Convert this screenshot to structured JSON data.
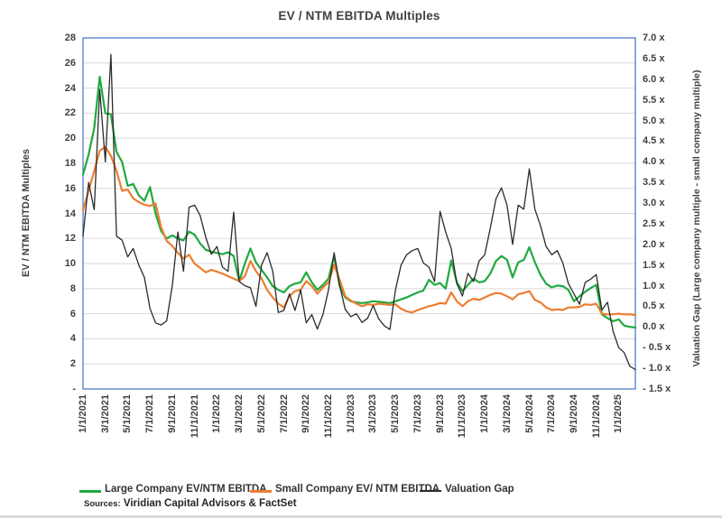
{
  "title": "EV / NTM EBITDA Multiples",
  "axes": {
    "left_title": "EV / NTM EBITDA Multiples",
    "right_title": "Valuation Gap (Large company multiple - small company multiple)",
    "left_ticks": [
      "28",
      "26",
      "24",
      "22",
      "20",
      "18",
      "16",
      "14",
      "12",
      "10",
      "8",
      "6",
      "4",
      "2",
      "-"
    ],
    "right_ticks": [
      "7.0 x",
      "6.5 x",
      "6.0 x",
      "5.5 x",
      "5.0 x",
      "4.5 x",
      "4.0 x",
      "3.5 x",
      "3.0 x",
      "2.5 x",
      "2.0 x",
      "1.5 x",
      "1.0 x",
      "0.5 x",
      "0.0 x",
      "- 0.5 x",
      "- 1.0 x",
      "- 1.5 x"
    ]
  },
  "legend": [
    {
      "label": "Large Company EV/NTM EBITDA",
      "color": "#1FA93F"
    },
    {
      "label": "Small Company EV/ NTM EBITDA",
      "color": "#ED7D31"
    },
    {
      "label": "Valuation Gap",
      "color": "#2B2B2B"
    }
  ],
  "source_note": {
    "prefix": "Sources:",
    "text": "Viridian Capital Advisors & FactSet"
  },
  "colors": {
    "plot_border": "#4472C4",
    "gridline": "#D9D9D9",
    "axis_text": "#404040",
    "large_series": "#1FA93F",
    "small_series": "#ED7D31",
    "gap_series": "#2B2B2B"
  },
  "chart_data": {
    "type": "line",
    "grid": "horizontal",
    "legend_position": "bottom",
    "sampling": "semi-monthly estimates read from weekly plotted lines, 1/1/2021 - 2/14/2025",
    "x_tick_labels": [
      "1/1/2021",
      "3/1/2021",
      "5/1/2021",
      "7/1/2021",
      "9/1/2021",
      "11/1/2021",
      "1/1/2022",
      "3/1/2022",
      "5/1/2022",
      "7/1/2022",
      "9/1/2022",
      "11/1/2022",
      "1/1/2023",
      "3/1/2023",
      "5/1/2023",
      "7/1/2023",
      "9/1/2023",
      "11/1/2023",
      "1/1/2024",
      "3/1/2024",
      "5/1/2024",
      "7/1/2024",
      "9/1/2024",
      "11/1/2024",
      "1/1/2025"
    ],
    "x_tick_every_n_points": 4,
    "axes": {
      "left": {
        "min": 0,
        "max": 28,
        "step": 2,
        "title": "EV / NTM EBITDA Multiples"
      },
      "right": {
        "min": -1.5,
        "max": 7.0,
        "step": 0.5,
        "title": "Valuation Gap (Large company multiple - small company multiple)"
      }
    },
    "categories": [
      "1/1/2021",
      "1/15/2021",
      "2/1/2021",
      "2/15/2021",
      "3/1/2021",
      "3/15/2021",
      "4/1/2021",
      "4/15/2021",
      "5/1/2021",
      "5/15/2021",
      "6/1/2021",
      "6/15/2021",
      "7/1/2021",
      "7/15/2021",
      "8/1/2021",
      "8/15/2021",
      "9/1/2021",
      "9/15/2021",
      "10/1/2021",
      "10/15/2021",
      "11/1/2021",
      "11/15/2021",
      "12/1/2021",
      "12/15/2021",
      "1/1/2022",
      "1/15/2022",
      "2/1/2022",
      "2/15/2022",
      "3/1/2022",
      "3/15/2022",
      "4/1/2022",
      "4/15/2022",
      "5/1/2022",
      "5/15/2022",
      "6/1/2022",
      "6/15/2022",
      "7/1/2022",
      "7/15/2022",
      "8/1/2022",
      "8/15/2022",
      "9/1/2022",
      "9/15/2022",
      "10/1/2022",
      "10/15/2022",
      "11/1/2022",
      "11/15/2022",
      "12/1/2022",
      "12/15/2022",
      "1/1/2023",
      "1/15/2023",
      "2/1/2023",
      "2/15/2023",
      "3/1/2023",
      "3/15/2023",
      "4/1/2023",
      "4/15/2023",
      "5/1/2023",
      "5/15/2023",
      "6/1/2023",
      "6/15/2023",
      "7/1/2023",
      "7/15/2023",
      "8/1/2023",
      "8/15/2023",
      "9/1/2023",
      "9/15/2023",
      "10/1/2023",
      "10/15/2023",
      "11/1/2023",
      "11/15/2023",
      "12/1/2023",
      "12/15/2023",
      "1/1/2024",
      "1/15/2024",
      "2/1/2024",
      "2/15/2024",
      "3/1/2024",
      "3/15/2024",
      "4/1/2024",
      "4/15/2024",
      "5/1/2024",
      "5/15/2024",
      "6/1/2024",
      "6/15/2024",
      "7/1/2024",
      "7/15/2024",
      "8/1/2024",
      "8/15/2024",
      "9/1/2024",
      "9/15/2024",
      "10/1/2024",
      "10/15/2024",
      "11/1/2024",
      "11/15/2024",
      "12/1/2024",
      "12/15/2024",
      "1/1/2025",
      "1/15/2025",
      "2/1/2025",
      "2/14/2025"
    ],
    "series": [
      {
        "name": "Large Company EV/NTM EBITDA",
        "axis": "left",
        "color": "#1FA93F",
        "width": 2.2,
        "values": [
          17.1,
          18.7,
          20.8,
          24.9,
          22.0,
          21.9,
          18.9,
          18.1,
          16.2,
          16.35,
          15.45,
          15.0,
          16.1,
          14.0,
          12.6,
          12.0,
          12.25,
          12.0,
          11.85,
          12.55,
          12.3,
          11.6,
          11.1,
          10.95,
          10.85,
          10.75,
          10.9,
          10.6,
          8.6,
          10.0,
          11.2,
          10.1,
          9.5,
          8.9,
          8.2,
          7.9,
          7.7,
          8.2,
          8.4,
          8.5,
          9.3,
          8.5,
          7.9,
          8.3,
          8.8,
          10.6,
          8.2,
          7.3,
          7.0,
          6.9,
          6.85,
          6.9,
          7.0,
          6.95,
          6.9,
          6.85,
          7.0,
          7.15,
          7.3,
          7.5,
          7.7,
          7.85,
          8.7,
          8.3,
          8.45,
          8.0,
          10.25,
          8.5,
          7.8,
          8.3,
          8.8,
          8.5,
          8.6,
          9.2,
          10.2,
          10.6,
          10.3,
          8.9,
          10.1,
          10.3,
          11.3,
          10.1,
          9.1,
          8.4,
          8.1,
          8.25,
          8.2,
          7.9,
          7.0,
          7.4,
          7.75,
          8.05,
          8.3,
          5.95,
          5.65,
          5.4,
          5.55,
          5.05,
          4.95,
          4.9
        ]
      },
      {
        "name": "Small Company EV/ NTM EBITDA",
        "axis": "left",
        "color": "#ED7D31",
        "width": 2.2,
        "values": [
          14.25,
          15.8,
          17.4,
          19.0,
          19.3,
          18.6,
          17.4,
          15.8,
          15.9,
          15.2,
          14.9,
          14.7,
          14.6,
          14.8,
          12.9,
          11.8,
          11.4,
          10.85,
          10.4,
          10.7,
          10.0,
          9.65,
          9.3,
          9.5,
          9.35,
          9.2,
          9.0,
          8.8,
          8.6,
          9.0,
          10.2,
          9.4,
          8.8,
          7.9,
          7.3,
          6.8,
          6.5,
          7.4,
          7.8,
          7.9,
          8.6,
          8.2,
          7.6,
          8.1,
          8.5,
          9.9,
          8.7,
          7.4,
          7.05,
          6.8,
          6.6,
          6.75,
          6.7,
          6.8,
          6.75,
          6.7,
          6.75,
          6.4,
          6.2,
          6.1,
          6.3,
          6.45,
          6.6,
          6.7,
          6.85,
          6.8,
          7.7,
          7.0,
          6.6,
          7.0,
          7.2,
          7.1,
          7.3,
          7.5,
          7.65,
          7.6,
          7.4,
          7.15,
          7.55,
          7.65,
          7.8,
          7.1,
          6.9,
          6.5,
          6.3,
          6.35,
          6.3,
          6.5,
          6.5,
          6.55,
          6.75,
          6.7,
          6.8,
          6.0,
          5.95,
          5.95,
          6.0,
          5.95,
          5.95,
          5.9
        ]
      },
      {
        "name": "Valuation Gap",
        "axis": "right",
        "color": "#2B2B2B",
        "width": 1.3,
        "values": [
          2.2,
          3.5,
          2.84,
          5.75,
          4.0,
          6.6,
          2.2,
          2.1,
          1.7,
          1.9,
          1.5,
          1.2,
          0.45,
          0.1,
          0.05,
          0.15,
          1.0,
          2.3,
          1.35,
          2.9,
          2.95,
          2.7,
          2.17,
          1.76,
          1.95,
          1.45,
          1.35,
          2.78,
          1.1,
          1.0,
          0.95,
          0.5,
          1.5,
          1.8,
          1.35,
          0.35,
          0.4,
          0.8,
          0.4,
          0.9,
          0.1,
          0.3,
          -0.05,
          0.3,
          0.9,
          1.8,
          1.0,
          0.43,
          0.25,
          0.32,
          0.11,
          0.21,
          0.52,
          0.2,
          0.03,
          -0.06,
          0.9,
          1.5,
          1.75,
          1.85,
          1.9,
          1.55,
          1.45,
          1.1,
          2.8,
          2.3,
          1.9,
          1.05,
          0.75,
          1.3,
          1.1,
          1.6,
          1.75,
          2.4,
          3.1,
          3.37,
          2.95,
          2.0,
          2.95,
          2.85,
          3.83,
          2.85,
          2.45,
          1.95,
          1.75,
          1.85,
          1.55,
          1.05,
          0.8,
          0.55,
          1.08,
          1.16,
          1.27,
          0.41,
          0.6,
          -0.1,
          -0.5,
          -0.62,
          -0.95,
          -1.03
        ]
      }
    ]
  }
}
